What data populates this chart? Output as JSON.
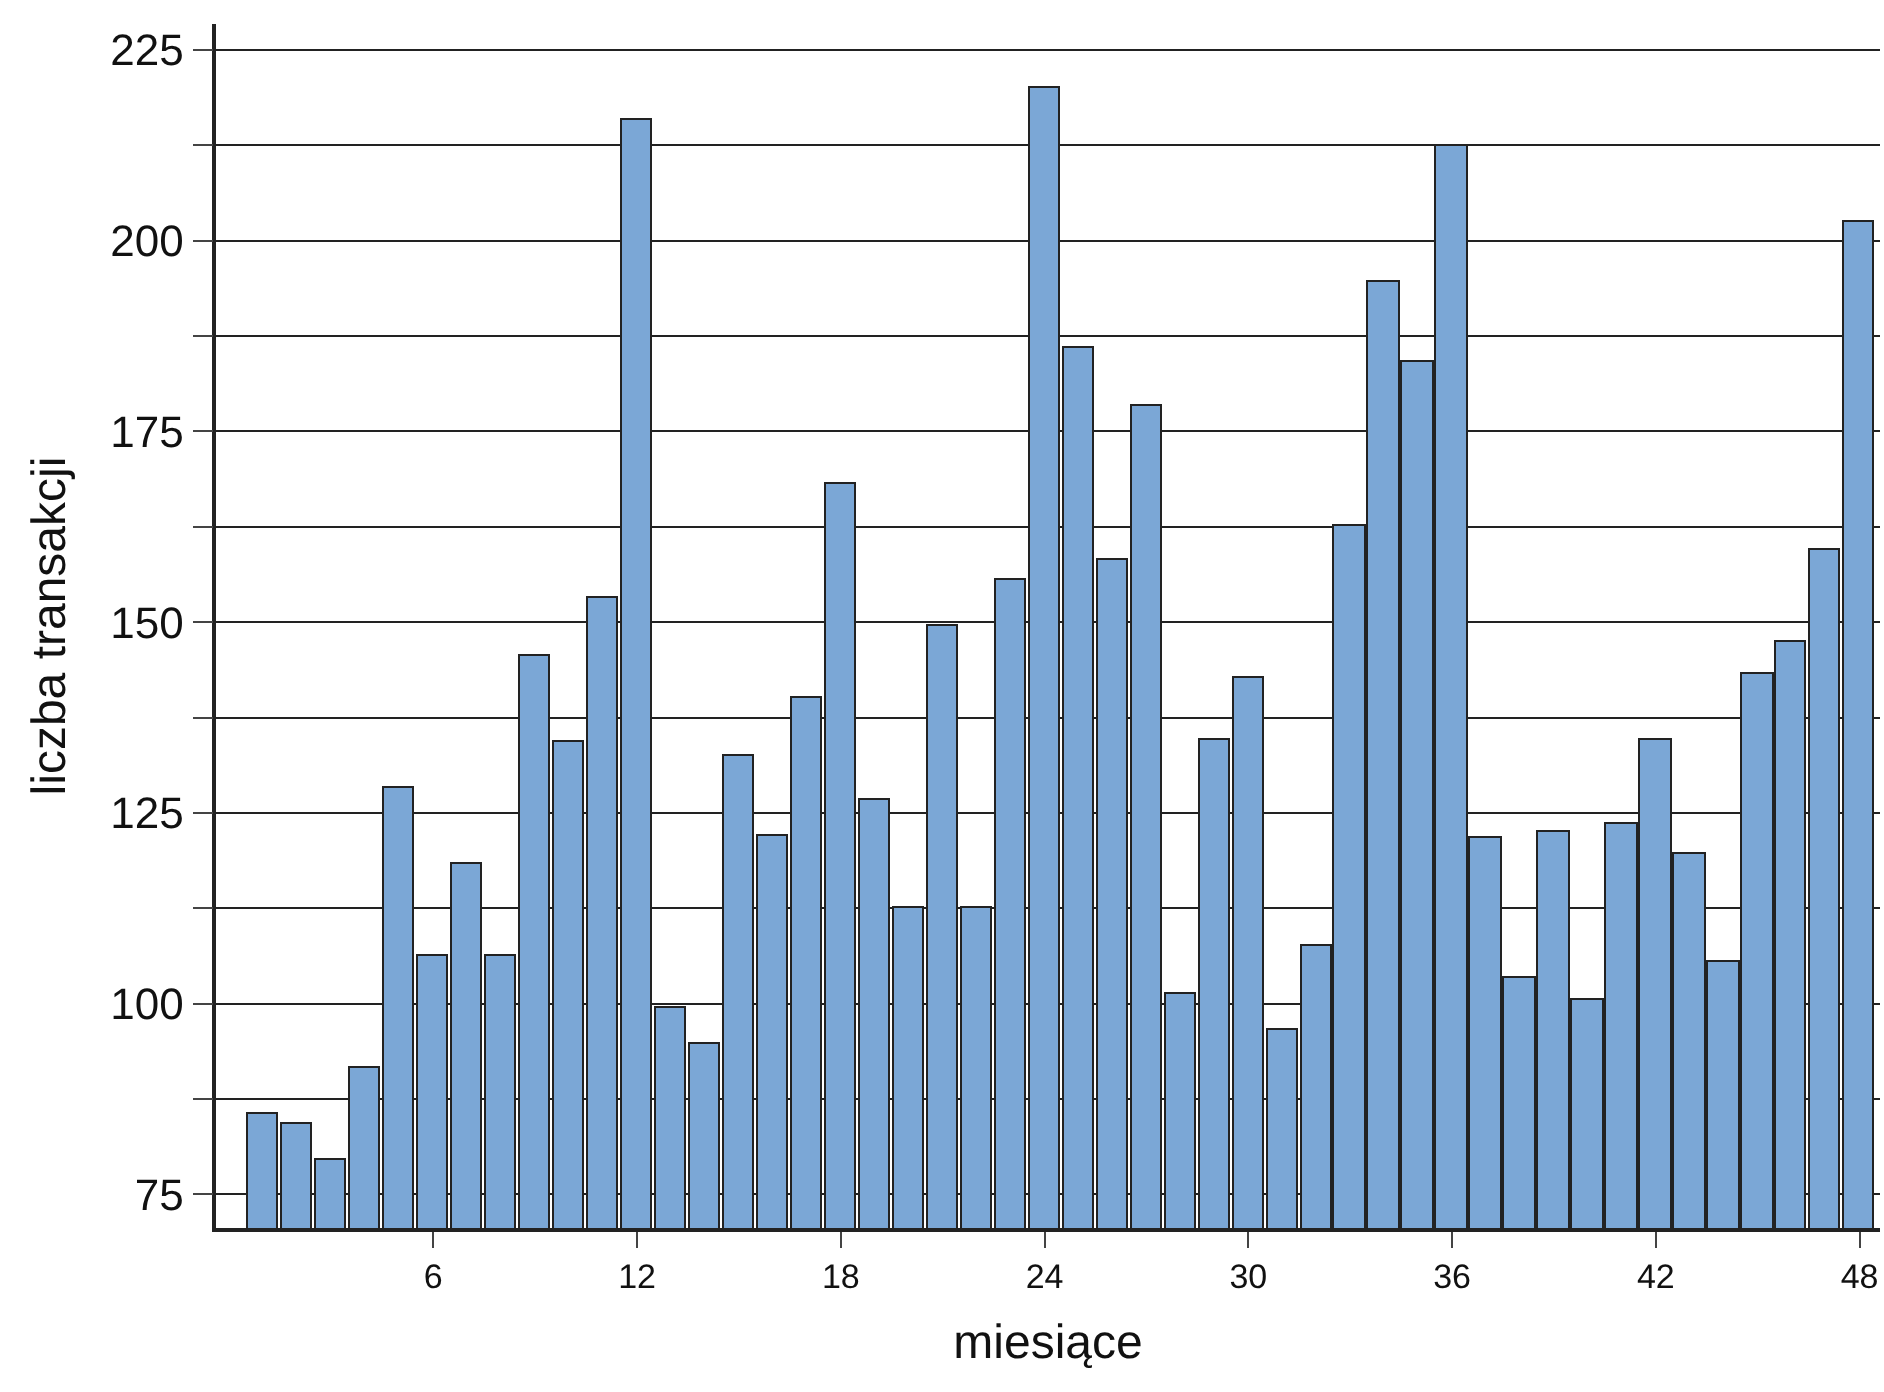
{
  "chart_data": {
    "type": "bar",
    "xlabel": "miesiące",
    "ylabel": "liczba transakcji",
    "color": "#7ba7d6",
    "x": [
      1,
      2,
      3,
      4,
      5,
      6,
      7,
      8,
      9,
      10,
      11,
      12,
      13,
      14,
      15,
      16,
      17,
      18,
      19,
      20,
      21,
      22,
      23,
      24,
      25,
      26,
      27,
      28,
      29,
      30,
      31,
      32,
      33,
      34,
      35,
      36,
      37,
      38,
      39,
      40,
      41,
      42,
      43,
      44,
      45,
      46,
      47,
      48
    ],
    "values": [
      85.5,
      84.3,
      79.6,
      91.6,
      128.3,
      106.3,
      118.3,
      106.3,
      145.6,
      134.3,
      153.3,
      215.8,
      99.4,
      94.7,
      132.5,
      121.9,
      140.0,
      168.2,
      126.6,
      112.5,
      149.4,
      112.5,
      155.4,
      220.0,
      186.0,
      158.2,
      178.4,
      101.2,
      134.5,
      142.6,
      96.6,
      107.5,
      162.7,
      194.5,
      184.2,
      212.4,
      121.8,
      103.4,
      122.6,
      100.6,
      123.5,
      134.5,
      119.6,
      105.5,
      143.2,
      147.3,
      159.5,
      202.4
    ],
    "xlim": [
      -0.4,
      48.6
    ],
    "xticks": [
      6,
      12,
      18,
      24,
      30,
      36,
      42,
      48
    ],
    "ylim": [
      70.6,
      228.4
    ],
    "yticks": [
      75,
      {
        "value": 87.5,
        "label": null
      },
      100,
      {
        "value": 112.5,
        "label": null
      },
      125,
      {
        "value": 137.5,
        "label": null
      },
      150,
      {
        "value": 162.5,
        "label": null
      },
      175,
      {
        "value": 187.5,
        "label": null
      },
      200,
      {
        "value": 212.5,
        "label": null
      },
      225
    ],
    "grid": "y"
  }
}
